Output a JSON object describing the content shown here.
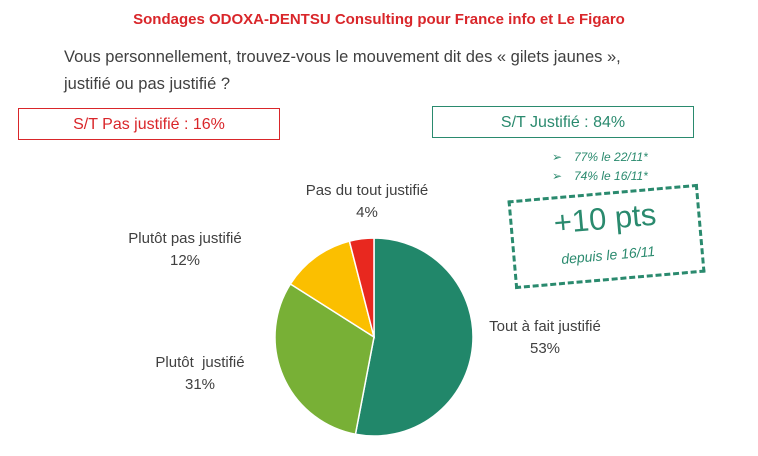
{
  "title": "Sondages ODOXA-DENTSU Consulting pour France info et Le Figaro",
  "question_line1": "Vous personnellement, trouvez-vous le mouvement dit des « gilets jaunes »,",
  "question_line2": "justifié ou pas justifié ?",
  "summary_negative": "S/T Pas justifié : 16%",
  "summary_positive": "S/T Justifié : 84%",
  "history": [
    {
      "arrow": "➢",
      "text": "77% le 22/11*"
    },
    {
      "arrow": "➢",
      "text": "74% le 16/11*"
    }
  ],
  "stamp": {
    "main": "+10 pts",
    "sub": "depuis le 16/11"
  },
  "colors": {
    "title_red": "#d9262a",
    "positive_green": "#2a8a6e"
  },
  "chart_data": {
    "type": "pie",
    "title": "",
    "slices": [
      {
        "label": "Tout à fait justifié",
        "value": 53,
        "value_label": "53%",
        "color": "#21876a"
      },
      {
        "label": "Plutôt  justifié",
        "value": 31,
        "value_label": "31%",
        "color": "#78b036"
      },
      {
        "label": "Plutôt pas justifié",
        "value": 12,
        "value_label": "12%",
        "color": "#fbbf00"
      },
      {
        "label": "Pas du tout justifié",
        "value": 4,
        "value_label": "4%",
        "color": "#e8281f"
      }
    ]
  }
}
